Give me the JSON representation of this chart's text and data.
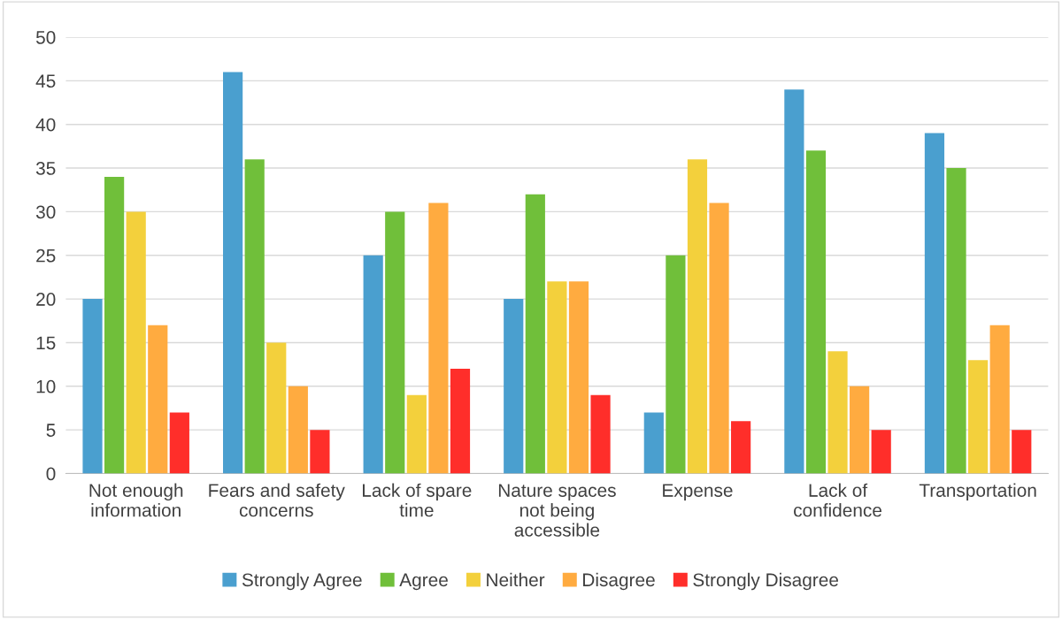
{
  "chart_data": {
    "type": "bar",
    "categories": [
      "Not enough information",
      "Fears and safety concerns",
      "Lack of spare time",
      "Nature spaces not being accessible",
      "Expense",
      "Lack of confidence",
      "Transportation"
    ],
    "series": [
      {
        "name": "Strongly Agree",
        "color": "#4a9fcf",
        "values": [
          20,
          46,
          25,
          20,
          7,
          44,
          39
        ]
      },
      {
        "name": "Agree",
        "color": "#70bf3a",
        "values": [
          34,
          36,
          30,
          32,
          25,
          37,
          35
        ]
      },
      {
        "name": "Neither",
        "color": "#f3d03c",
        "values": [
          30,
          15,
          9,
          22,
          36,
          14,
          13
        ]
      },
      {
        "name": "Disagree",
        "color": "#ffab40",
        "values": [
          17,
          10,
          31,
          22,
          31,
          10,
          17
        ]
      },
      {
        "name": "Strongly Disagree",
        "color": "#ff2e2a",
        "values": [
          7,
          5,
          12,
          9,
          6,
          5,
          5
        ]
      }
    ],
    "ylim": [
      0,
      50
    ],
    "yticks": [
      0,
      5,
      10,
      15,
      20,
      25,
      30,
      35,
      40,
      45,
      50
    ],
    "grid": "y",
    "legend": "bottom"
  }
}
